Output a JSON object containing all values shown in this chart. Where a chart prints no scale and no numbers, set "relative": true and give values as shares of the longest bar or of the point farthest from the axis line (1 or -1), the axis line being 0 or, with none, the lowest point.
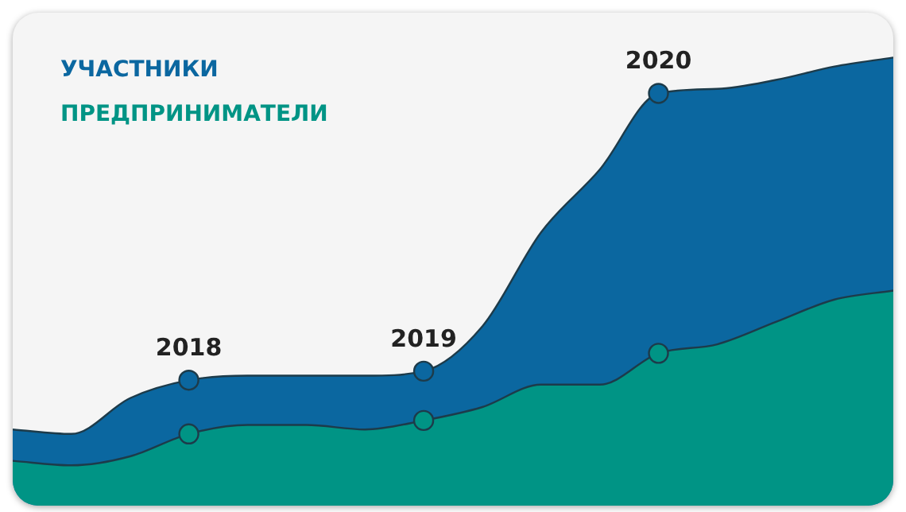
{
  "chart_data": {
    "type": "area",
    "relative": true,
    "legend": "top left",
    "tick_labels": false,
    "categories": [
      null,
      null,
      null,
      null,
      null,
      null,
      null,
      null,
      null,
      null,
      null,
      null,
      null,
      null,
      null,
      null
    ],
    "series": [
      {
        "name": "УЧАСТНИКИ",
        "color": "#0b67a0",
        "values": [
          0.17,
          0.16,
          0.24,
          0.28,
          0.29,
          0.29,
          0.29,
          0.3,
          0.4,
          0.61,
          0.75,
          0.92,
          0.93,
          0.95,
          0.98,
          1
        ]
      },
      {
        "name": "ПРЕДПРИНИМАТЕЛИ",
        "color": "#009485",
        "values": [
          0.1,
          0.09,
          0.11,
          0.16,
          0.18,
          0.18,
          0.17,
          0.19,
          0.22,
          0.27,
          0.27,
          0.34,
          0.36,
          0.41,
          0.46,
          0.48
        ]
      }
    ],
    "annotations": [
      {
        "text": "2018",
        "y": 0.28
      },
      {
        "text": "2019",
        "y": 0.3
      },
      {
        "text": "2020",
        "y": 0.92
      }
    ]
  }
}
